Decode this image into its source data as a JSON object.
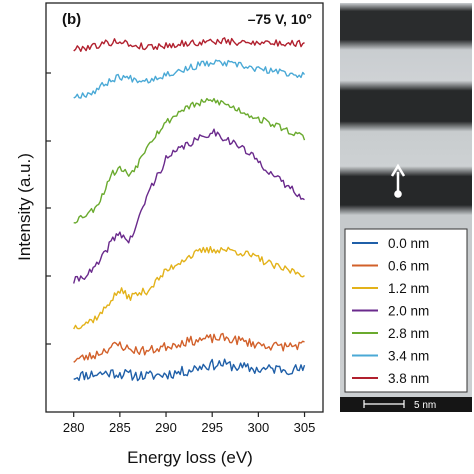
{
  "panel_label": "(b)",
  "condition_label": "–75 V, 10°",
  "scale_bar_label": "5 nm",
  "colors": {
    "frame": "#222222",
    "tem_bright": "#c9cdd0",
    "tem_dark": "#262829",
    "arrow": "#ffffff"
  },
  "chart_data": {
    "type": "line",
    "xlabel": "Energy loss (eV)",
    "ylabel": "Intensity (a.u.)",
    "xlim": [
      277,
      307
    ],
    "xticks": [
      280,
      285,
      290,
      295,
      300,
      305
    ],
    "y_scale": "stacked curves, no numeric tick labels",
    "grid": false,
    "legend_placement": "bottom-right (over image panel)",
    "series": [
      {
        "name": "0.0 nm",
        "color": "#1f5fa8",
        "x": [
          280,
          282,
          284,
          285,
          286,
          288,
          290,
          292,
          294,
          296,
          298,
          300,
          302,
          305
        ],
        "y": [
          0.32,
          0.38,
          0.42,
          0.4,
          0.36,
          0.33,
          0.38,
          0.45,
          0.6,
          0.65,
          0.56,
          0.5,
          0.52,
          0.5
        ],
        "noise": 0.14,
        "seed": 11
      },
      {
        "name": "0.6 nm",
        "color": "#d2602a",
        "x": [
          280,
          282,
          284,
          285,
          286,
          288,
          290,
          292,
          294,
          296,
          298,
          300,
          302,
          305
        ],
        "y": [
          0.75,
          0.85,
          1.08,
          1.15,
          1.02,
          0.98,
          1.1,
          1.22,
          1.28,
          1.32,
          1.25,
          1.15,
          1.1,
          1.13
        ],
        "noise": 0.12,
        "seed": 23
      },
      {
        "name": "1.2 nm",
        "color": "#e3b21a",
        "x": [
          280,
          282,
          283,
          284,
          285,
          286,
          288,
          290,
          292,
          294,
          296,
          298,
          300,
          302,
          305
        ],
        "y": [
          1.6,
          1.78,
          1.95,
          2.3,
          2.55,
          2.38,
          2.55,
          3.05,
          3.38,
          3.58,
          3.62,
          3.55,
          3.38,
          3.15,
          2.98
        ],
        "noise": 0.1,
        "seed": 37
      },
      {
        "name": "2.0 nm",
        "color": "#6a2a8c",
        "x": [
          280,
          282,
          283,
          284,
          285,
          286,
          287,
          288,
          290,
          292,
          294,
          295,
          296,
          298,
          300,
          302,
          305
        ],
        "y": [
          2.78,
          3.05,
          3.35,
          3.8,
          4.05,
          3.8,
          4.35,
          5.05,
          5.95,
          6.3,
          6.52,
          6.68,
          6.55,
          6.28,
          5.9,
          5.45,
          4.95
        ],
        "noise": 0.1,
        "seed": 41
      },
      {
        "name": "2.8 nm",
        "color": "#6aaa2e",
        "x": [
          280,
          282,
          283,
          284,
          285,
          286,
          287,
          288,
          290,
          292,
          294,
          295,
          296,
          298,
          300,
          302,
          305
        ],
        "y": [
          4.35,
          4.62,
          4.95,
          5.55,
          5.72,
          5.55,
          5.85,
          6.35,
          6.9,
          7.28,
          7.42,
          7.48,
          7.42,
          7.22,
          7.0,
          6.82,
          6.5
        ],
        "noise": 0.09,
        "seed": 53
      },
      {
        "name": "3.4 nm",
        "color": "#4aa9d6",
        "x": [
          280,
          282,
          284,
          285,
          286,
          288,
          290,
          292,
          294,
          296,
          298,
          300,
          302,
          305
        ],
        "y": [
          7.58,
          7.68,
          8.0,
          8.1,
          8.05,
          8.0,
          8.15,
          8.28,
          8.42,
          8.45,
          8.38,
          8.28,
          8.22,
          8.12
        ],
        "noise": 0.09,
        "seed": 67
      },
      {
        "name": "3.8 nm",
        "color": "#b1202e",
        "x": [
          280,
          282,
          284,
          285,
          286,
          288,
          290,
          292,
          294,
          296,
          298,
          300,
          302,
          305
        ],
        "y": [
          8.8,
          8.88,
          8.98,
          9.02,
          8.92,
          8.86,
          8.9,
          8.95,
          8.98,
          9.02,
          8.96,
          9.0,
          8.95,
          8.96
        ],
        "noise": 0.09,
        "seed": 79
      }
    ]
  }
}
